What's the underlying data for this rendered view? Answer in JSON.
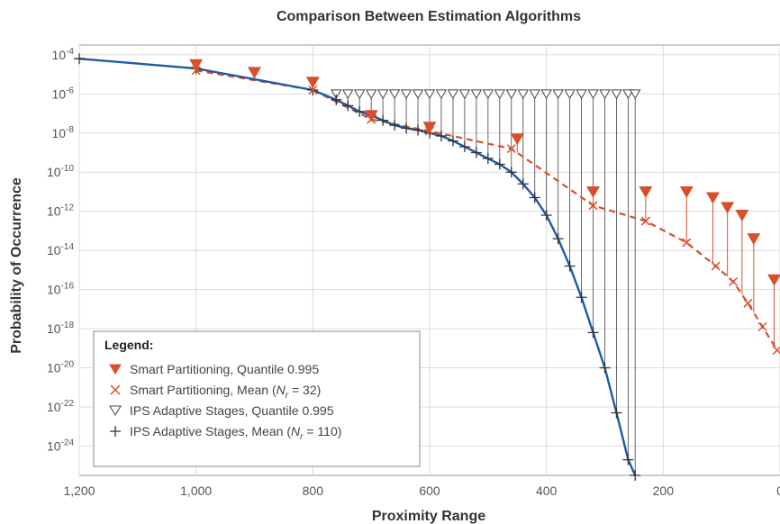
{
  "chart_data": {
    "type": "line",
    "title": "Comparison Between Estimation Algorithms",
    "xlabel": "Proximity Range",
    "ylabel": "Probability of Occurrence",
    "x_ticks": [
      1200,
      1000,
      800,
      600,
      400,
      200,
      0
    ],
    "x_tick_labels": [
      "1,200",
      "1,000",
      "800",
      "600",
      "400",
      "200",
      "0"
    ],
    "xlim": [
      1200,
      0
    ],
    "x_reversed": true,
    "y_scale": "log",
    "ylim_exponent": [
      -25.5,
      -3.5
    ],
    "y_tick_exponents": [
      -4,
      -6,
      -8,
      -10,
      -12,
      -14,
      -16,
      -18,
      -20,
      -22,
      -24
    ],
    "y_tick_base": "10",
    "grid": true,
    "legend_title": "Legend:",
    "legend_position": "bottom-left",
    "legend": [
      {
        "key": "sp_quantile",
        "label": "Smart Partitioning, Quantile 0.995",
        "marker": "filled-triangle-down",
        "color": "#d94f2b"
      },
      {
        "key": "sp_mean",
        "label_prefix": "Smart Partitioning, Mean (",
        "label_n": "N",
        "label_sub": "r",
        "label_suffix": " = 32)",
        "marker": "x",
        "color": "#d94f2b"
      },
      {
        "key": "ips_quantile",
        "label": "IPS Adaptive Stages, Quantile 0.995",
        "marker": "open-triangle-down",
        "color": "#444444"
      },
      {
        "key": "ips_mean",
        "label_prefix": "IPS Adaptive Stages, Mean (",
        "label_n": "N",
        "label_sub": "r",
        "label_suffix": " = 110)",
        "marker": "plus",
        "color": "#333333"
      }
    ],
    "series": [
      {
        "key": "ips_mean",
        "style": "solid",
        "color": "#1f5aa6",
        "x": [
          1200,
          1000,
          800,
          760,
          740,
          720,
          700,
          680,
          660,
          640,
          620,
          600,
          580,
          560,
          540,
          520,
          500,
          480,
          460,
          440,
          420,
          400,
          380,
          360,
          340,
          320,
          300,
          280,
          260,
          248
        ],
        "log10_y": [
          -4.2,
          -4.7,
          -5.8,
          -6.3,
          -6.6,
          -6.9,
          -7.1,
          -7.35,
          -7.6,
          -7.75,
          -7.85,
          -8.0,
          -8.15,
          -8.4,
          -8.7,
          -9.0,
          -9.3,
          -9.6,
          -10.0,
          -10.6,
          -11.3,
          -12.2,
          -13.4,
          -14.8,
          -16.4,
          -18.2,
          -20.0,
          -22.3,
          -24.7,
          -25.5
        ]
      },
      {
        "key": "ips_quantile",
        "color": "#444444",
        "x": [
          760,
          740,
          720,
          700,
          680,
          660,
          640,
          620,
          600,
          580,
          560,
          540,
          520,
          500,
          480,
          460,
          440,
          420,
          400,
          380,
          360,
          340,
          320,
          300,
          280,
          260,
          248
        ],
        "log10_y": [
          -6.0,
          -6.0,
          -6.0,
          -6.0,
          -6.0,
          -6.0,
          -6.0,
          -6.0,
          -6.0,
          -6.0,
          -6.0,
          -6.0,
          -6.0,
          -6.0,
          -6.0,
          -6.0,
          -6.0,
          -6.0,
          -6.0,
          -6.0,
          -6.0,
          -6.0,
          -6.0,
          -6.0,
          -6.0,
          -6.0,
          -6.0
        ]
      },
      {
        "key": "sp_mean",
        "style": "dashed",
        "color": "#d94f2b",
        "x": [
          1000,
          800,
          700,
          600,
          460,
          320,
          230,
          160,
          110,
          80,
          55,
          30,
          5
        ],
        "log10_y": [
          -4.8,
          -5.8,
          -7.3,
          -7.9,
          -8.8,
          -11.7,
          -12.5,
          -13.6,
          -14.8,
          -15.6,
          -16.7,
          -17.9,
          -19.1
        ]
      },
      {
        "key": "sp_quantile",
        "color": "#d94f2b",
        "x": [
          1000,
          900,
          800,
          700,
          600,
          450,
          320,
          230,
          160,
          115,
          90,
          65,
          45,
          10
        ],
        "log10_y": [
          -4.5,
          -4.9,
          -5.4,
          -7.1,
          -7.7,
          -8.3,
          -11.0,
          -11.0,
          -11.0,
          -11.3,
          -11.8,
          -12.2,
          -13.4,
          -15.5
        ]
      }
    ]
  }
}
